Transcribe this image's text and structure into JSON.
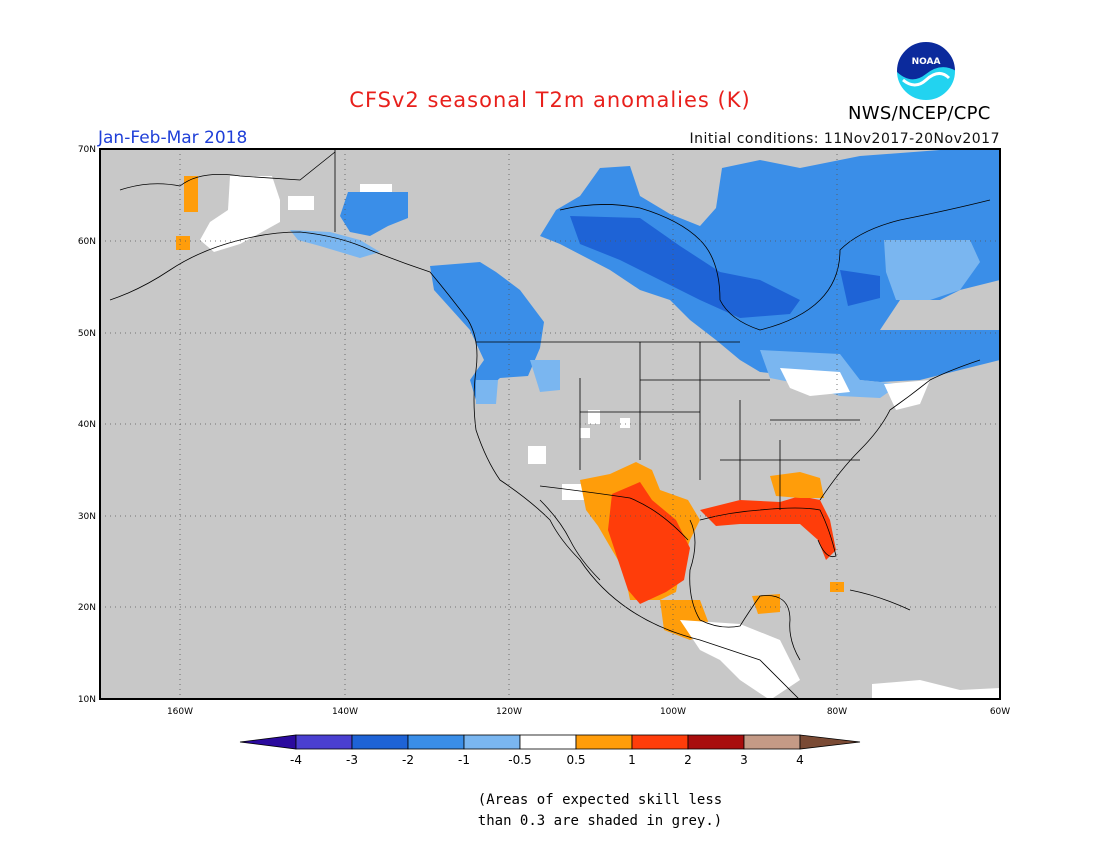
{
  "title": "CFSv2 seasonal T2m anomalies (K)",
  "season": "Jan-Feb-Mar 2018",
  "initial_conditions": "Initial conditions: 11Nov2017-20Nov2017",
  "agency": "NWS/NCEP/CPC",
  "logo_text": "NOAA",
  "logo_icon": "noaa-logo-icon",
  "note_line1": "(Areas of expected skill less",
  "note_line2": "than 0.3 are shaded in grey.)",
  "map": {
    "lon_range": [
      -172,
      -60
    ],
    "lat_range": [
      10,
      70
    ],
    "lat_ticks": [
      {
        "value": 10,
        "label": "10N"
      },
      {
        "value": 20,
        "label": "20N"
      },
      {
        "value": 30,
        "label": "30N"
      },
      {
        "value": 40,
        "label": "40N"
      },
      {
        "value": 50,
        "label": "50N"
      },
      {
        "value": 60,
        "label": "60N"
      },
      {
        "value": 70,
        "label": "70N"
      }
    ],
    "lon_ticks": [
      {
        "value": -160,
        "label": "160W"
      },
      {
        "value": -140,
        "label": "140W"
      },
      {
        "value": -120,
        "label": "120W"
      },
      {
        "value": -100,
        "label": "100W"
      },
      {
        "value": -80,
        "label": "80W"
      },
      {
        "value": -60,
        "label": "60W"
      }
    ],
    "no_skill_color": "#c8c8c8",
    "land_outline_color": "#000000"
  },
  "colorbar": {
    "labels": [
      "-4",
      "-3",
      "-2",
      "-1",
      "-0.5",
      "0.5",
      "1",
      "2",
      "3",
      "4"
    ],
    "colors": [
      "#2b0a9e",
      "#4a3fd0",
      "#1e63d6",
      "#3a8ee8",
      "#7ab6f0",
      "#ffffff",
      "#ff9d0a",
      "#ff3d0a",
      "#a80d0d",
      "#c49a86",
      "#7a4a34"
    ]
  },
  "anomaly_regions": [
    {
      "name": "northern-canada-blue",
      "category": "-2"
    },
    {
      "name": "hudson-bay-dark-blue",
      "category": "-3"
    },
    {
      "name": "eastern-canada-blue",
      "category": "-2"
    },
    {
      "name": "alaska-white",
      "category": "-0.5 to 0.5"
    },
    {
      "name": "southwest-mexico-red",
      "category": "1 to 2"
    },
    {
      "name": "gulf-coast-red",
      "category": "1 to 2"
    },
    {
      "name": "florida-red",
      "category": "1 to 2"
    }
  ]
}
